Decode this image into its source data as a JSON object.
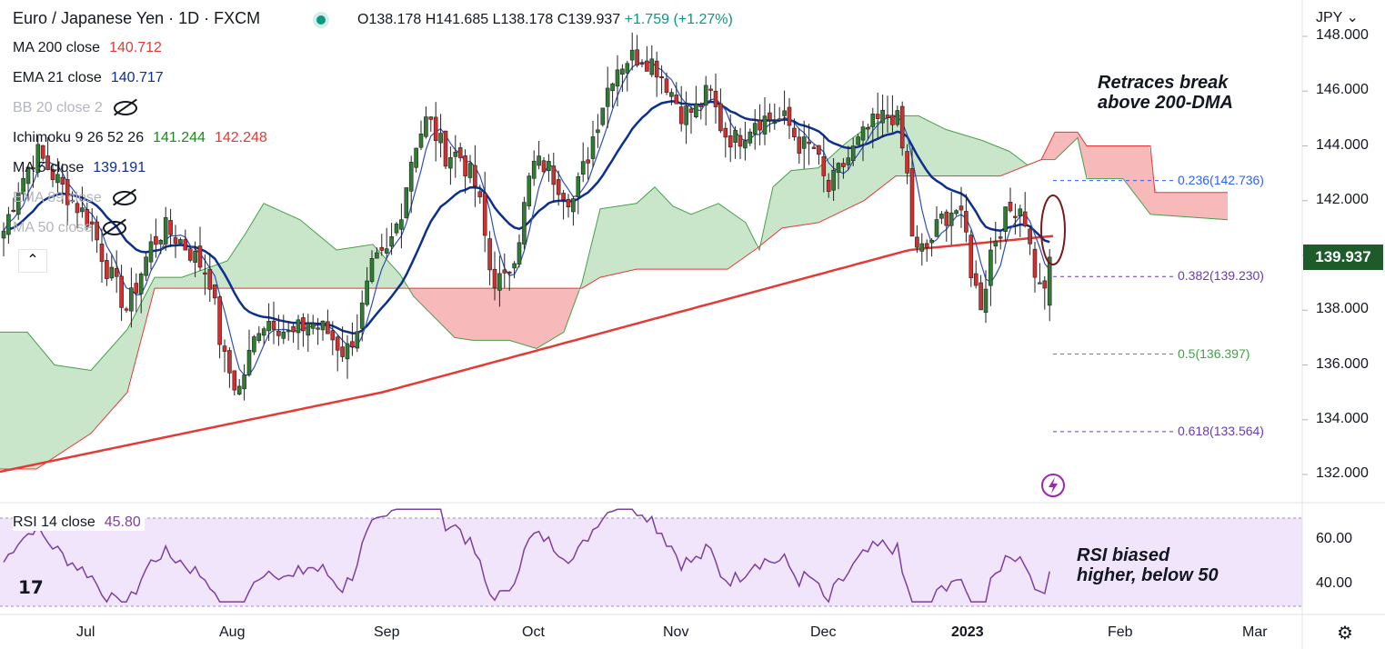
{
  "header": {
    "symbol": "Euro / Japanese Yen · 1D · FXCM",
    "open": "O138.178",
    "high": "H141.685",
    "low": "L138.178",
    "close": "C139.937",
    "change": "+1.759 (+1.27%)"
  },
  "indicators": [
    {
      "label": "MA 200 close",
      "values": [
        "140.712"
      ],
      "colors": [
        "#e53935"
      ],
      "hidden": false
    },
    {
      "label": "EMA 21 close",
      "values": [
        "140.717"
      ],
      "colors": [
        "#0d2f8e"
      ],
      "hidden": false
    },
    {
      "label": "BB 20 close 2",
      "values": [],
      "colors": [],
      "hidden": true
    },
    {
      "label": "Ichimoku 9 26 52 26",
      "values": [
        "141.244",
        "142.248"
      ],
      "colors": [
        "#1b8a1b",
        "#e53935"
      ],
      "hidden": false
    },
    {
      "label": "MA 5 close",
      "values": [
        "139.191"
      ],
      "colors": [
        "#0d2f8e"
      ],
      "hidden": false
    },
    {
      "label": "EMA 89 close",
      "values": [],
      "colors": [],
      "hidden": true
    },
    {
      "label": "MA 50 close",
      "values": [],
      "colors": [],
      "hidden": true
    }
  ],
  "annotations": {
    "price": "Retraces break\nabove 200-DMA",
    "rsi": "RSI biased\nhigher, below 50"
  },
  "fib_levels": [
    {
      "label": "0.236(142.736)",
      "price": 142.736,
      "color": "#2962ff"
    },
    {
      "label": "0.382(139.230)",
      "price": 139.23,
      "color": "#673ab7"
    },
    {
      "label": "0.5(136.397)",
      "price": 136.397,
      "color": "#43a047"
    },
    {
      "label": "0.618(133.564)",
      "price": 133.564,
      "color": "#673ab7"
    }
  ],
  "currency": "JPY",
  "current_price": "139.937",
  "rsi_panel": {
    "label": "RSI 14 close",
    "value": "45.80"
  },
  "chart_data": {
    "type": "candlestick",
    "title": "Euro / Japanese Yen · 1D · FXCM",
    "y_axis": {
      "ticks": [
        "148.000",
        "146.000",
        "144.000",
        "142.000",
        "140.000",
        "138.000",
        "136.000",
        "134.000",
        "132.000"
      ],
      "range": [
        131.2,
        148.3
      ]
    },
    "x_axis": {
      "ticks": [
        "Jul",
        "Aug",
        "Sep",
        "Oct",
        "Nov",
        "Dec",
        "2023",
        "Feb",
        "Mar"
      ]
    },
    "rsi_axis": {
      "ticks": [
        "60.00",
        "40.00"
      ],
      "range": [
        30,
        75
      ],
      "bands": [
        70,
        30
      ]
    },
    "grid": false,
    "candles_summary": [
      {
        "x": "Jun 15",
        "o": 141.0,
        "c": 142.8
      },
      {
        "x": "Jul 1",
        "o": 140.5,
        "c": 138.7
      },
      {
        "x": "Jul 12",
        "o": 138.0,
        "c": 140.7
      },
      {
        "x": "Jul 22",
        "o": 140.2,
        "c": 138.2
      },
      {
        "x": "Aug 2",
        "o": 136.7,
        "c": 134.6
      },
      {
        "x": "Aug 12",
        "o": 136.8,
        "c": 137.6
      },
      {
        "x": "Aug 22",
        "o": 137.6,
        "c": 136.9
      },
      {
        "x": "Sep 1",
        "o": 137.6,
        "c": 139.9
      },
      {
        "x": "Sep 7",
        "o": 140.3,
        "c": 144.1
      },
      {
        "x": "Sep 16",
        "o": 143.1,
        "c": 143.2
      },
      {
        "x": "Sep 22",
        "o": 142.3,
        "c": 139.2
      },
      {
        "x": "Sep 28",
        "o": 140.5,
        "c": 142.4
      },
      {
        "x": "Oct 6",
        "o": 142.1,
        "c": 143.0
      },
      {
        "x": "Oct 14",
        "o": 143.0,
        "c": 146.3
      },
      {
        "x": "Oct 21",
        "o": 146.2,
        "c": 147.4
      },
      {
        "x": "Oct 28",
        "o": 146.8,
        "c": 146.6
      },
      {
        "x": "Nov 4",
        "o": 146.5,
        "c": 145.0
      },
      {
        "x": "Nov 10",
        "o": 145.5,
        "c": 143.7
      },
      {
        "x": "Nov 18",
        "o": 144.5,
        "c": 145.2
      },
      {
        "x": "Nov 25",
        "o": 145.0,
        "c": 144.2
      },
      {
        "x": "Dec 2",
        "o": 144.0,
        "c": 142.3
      },
      {
        "x": "Dec 9",
        "o": 143.1,
        "c": 144.4
      },
      {
        "x": "Dec 16",
        "o": 145.3,
        "c": 145.1
      },
      {
        "x": "Dec 20",
        "o": 143.0,
        "c": 140.0
      },
      {
        "x": "Dec 28",
        "o": 140.0,
        "c": 141.3
      },
      {
        "x": "Jan 3",
        "o": 141.1,
        "c": 138.9
      },
      {
        "x": "Jan 6",
        "o": 138.3,
        "c": 140.6
      },
      {
        "x": "Jan 10",
        "o": 140.5,
        "c": 142.1
      },
      {
        "x": "Jan 16",
        "o": 141.5,
        "c": 138.6
      },
      {
        "x": "Jan 18",
        "o": 138.2,
        "c": 139.9
      }
    ],
    "series": [
      {
        "name": "MA 200 close",
        "last": 140.712
      },
      {
        "name": "EMA 21 close",
        "last": 140.717
      },
      {
        "name": "MA 5 close",
        "last": 139.191
      },
      {
        "name": "Ichimoku 9 26 52 26",
        "values": [
          141.244,
          142.248
        ]
      },
      {
        "name": "RSI 14 close",
        "last": 45.8
      }
    ]
  }
}
